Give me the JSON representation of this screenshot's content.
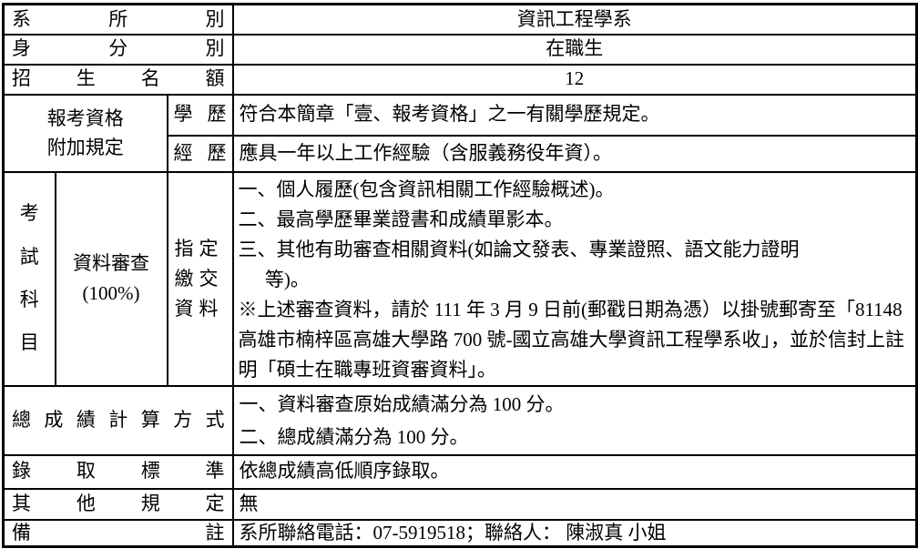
{
  "colors": {
    "border": "#000000",
    "text": "#000000",
    "background": "#ffffff"
  },
  "rows": {
    "department": {
      "label": "系所別",
      "value": "資訊工程學系"
    },
    "identity": {
      "label": "身分別",
      "value": "在職生"
    },
    "quota": {
      "label": "招生名額",
      "value": "12"
    },
    "qualification": {
      "label_line1": "報考資格",
      "label_line2": "附加規定",
      "education": {
        "label": "學歷",
        "value": "符合本簡章「壹、報考資格」之一有關學歷規定。"
      },
      "experience": {
        "label": "經歷",
        "value": "應具一年以上工作經驗（含服義務役年資）。"
      }
    },
    "exam": {
      "label": "考試科目",
      "subject": "資料審查",
      "subject_weight": "(100%)",
      "materials_label": "指定繳交資料",
      "items": [
        "一、個人履歷(包含資訊相關工作經驗概述)。",
        "二、最高學歷畢業證書和成績單影本。",
        "三、其他有助審查相關資料(如論文發表、專業證照、語文能力證明",
        "等)。",
        "※上述審查資料，請於 111 年 3 月 9 日前(郵戳日期為憑）以掛號郵寄至「81148 高雄市楠梓區高雄大學路 700 號-國立高雄大學資訊工程學系收」，並於信封上註明「碩士在職專班資審資料」。"
      ]
    },
    "total_score": {
      "label": "總成績計算方式",
      "items": [
        "一、資料審查原始成績滿分為 100 分。",
        "二、總成績滿分為 100 分。"
      ]
    },
    "admission": {
      "label": "錄取標準",
      "value": "依總成績高低順序錄取。"
    },
    "other": {
      "label": "其他規定",
      "value": "無"
    },
    "remarks": {
      "label": "備註",
      "value": "系所聯絡電話：07-5919518；聯絡人： 陳淑真 小姐"
    }
  }
}
